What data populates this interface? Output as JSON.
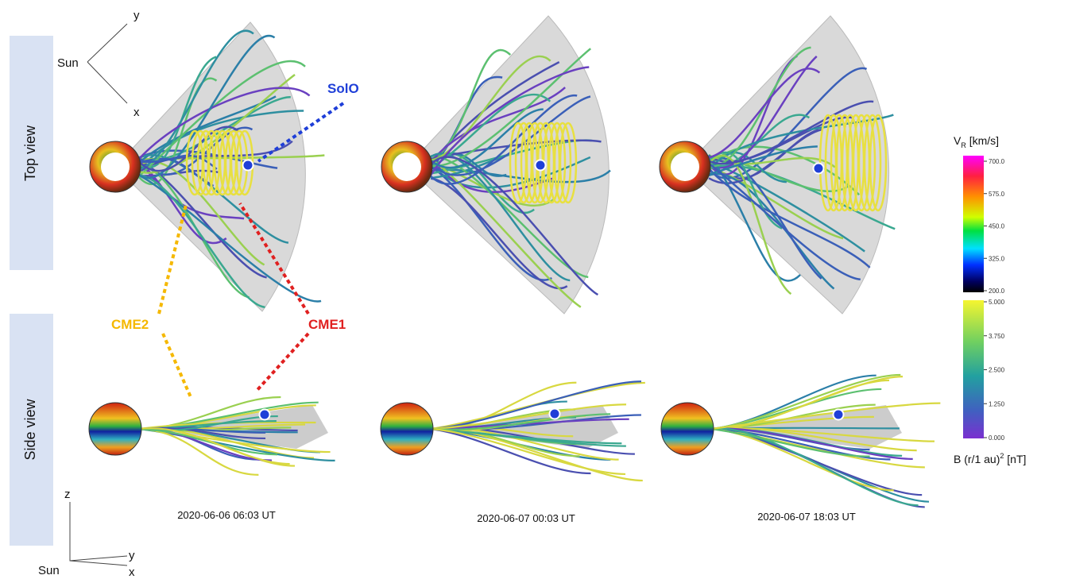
{
  "row_labels": [
    "Top view",
    "Side view"
  ],
  "axes_top": {
    "y": "y",
    "x": "x",
    "origin": "Sun"
  },
  "axes_side": {
    "z": "z",
    "y": "y",
    "x": "x",
    "origin": "Sun"
  },
  "annotations": {
    "solo": "SolO",
    "cme1": "CME1",
    "cme2": "CME2"
  },
  "panels": [
    {
      "time": "2020-06-06 06:03 UT"
    },
    {
      "time": "2020-06-07 00:03 UT"
    },
    {
      "time": "2020-06-07 18:03 UT"
    }
  ],
  "colorbar_vr": {
    "title": "V",
    "subscript": "R",
    "unit": " [km/s]",
    "ticks": [
      "700.0",
      "575.0",
      "450.0",
      "325.0",
      "200.0"
    ]
  },
  "colorbar_b": {
    "title": "B (r/1 au)",
    "superscript": "2",
    "unit": " [nT]",
    "ticks": [
      "5.000",
      "3.750",
      "2.500",
      "1.250",
      "0.000"
    ]
  }
}
